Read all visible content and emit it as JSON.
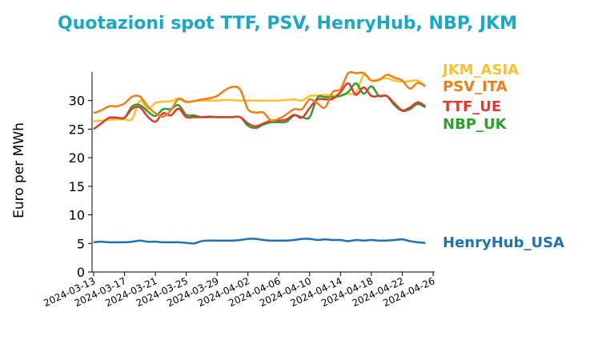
{
  "colors": {
    "title": "#19a9c7",
    "JKM_ASIA": "#fcc12b",
    "PSV_ITA": "#f07e14",
    "TTF_UE": "#dd3a30",
    "NBP_UK": "#2ca02c",
    "HenryHub_USA": "#1f72b2"
  },
  "chart_data": {
    "type": "line",
    "title": "Quotazioni spot TTF, PSV, HenryHub, NBP, JKM",
    "xlabel": "",
    "ylabel": "Euro per MWh",
    "ylim": [
      0,
      35
    ],
    "xlim": [
      "2024-03-13",
      "2024-04-26"
    ],
    "grid": false,
    "legend": "series labels at line ends (right)",
    "yticks": [
      "0",
      "5",
      "10",
      "15",
      "20",
      "25",
      "30"
    ],
    "xticks": [
      "2024-03-13",
      "2024-03-17",
      "2024-03-21",
      "2024-03-25",
      "2024-03-29",
      "2024-04-02",
      "2024-04-06",
      "2024-04-10",
      "2024-04-14",
      "2024-04-18",
      "2024-04-22",
      "2024-04-26"
    ],
    "x": [
      "2024-03-13",
      "2024-03-14",
      "2024-03-15",
      "2024-03-16",
      "2024-03-17",
      "2024-03-18",
      "2024-03-19",
      "2024-03-20",
      "2024-03-21",
      "2024-03-22",
      "2024-03-23",
      "2024-03-24",
      "2024-03-25",
      "2024-03-26",
      "2024-03-27",
      "2024-03-28",
      "2024-03-29",
      "2024-03-30",
      "2024-03-31",
      "2024-04-01",
      "2024-04-02",
      "2024-04-03",
      "2024-04-04",
      "2024-04-05",
      "2024-04-06",
      "2024-04-07",
      "2024-04-08",
      "2024-04-09",
      "2024-04-10",
      "2024-04-11",
      "2024-04-12",
      "2024-04-13",
      "2024-04-14",
      "2024-04-15",
      "2024-04-16",
      "2024-04-17",
      "2024-04-18",
      "2024-04-19",
      "2024-04-20",
      "2024-04-21",
      "2024-04-22",
      "2024-04-23",
      "2024-04-24",
      "2024-04-25"
    ],
    "series": [
      {
        "name": "JKM_ASIA",
        "values": [
          26.4,
          26.5,
          26.6,
          26.7,
          26.7,
          26.8,
          30.0,
          28.5,
          29.6,
          29.8,
          29.9,
          30.3,
          29.7,
          29.9,
          30.0,
          30.0,
          30.0,
          30.1,
          30.1,
          30.0,
          30.0,
          30.0,
          30.0,
          30.0,
          30.0,
          30.1,
          30.2,
          30.0,
          30.8,
          30.9,
          31.0,
          30.9,
          31.0,
          31.2,
          31.3,
          34.5,
          33.5,
          33.8,
          33.9,
          33.5,
          33.3,
          33.4,
          33.5,
          32.5
        ]
      },
      {
        "name": "PSV_ITA",
        "values": [
          27.8,
          28.3,
          29.0,
          29.0,
          29.5,
          30.7,
          30.7,
          29.0,
          27.8,
          27.2,
          28.3,
          30.3,
          29.8,
          29.9,
          30.2,
          30.4,
          30.8,
          31.8,
          32.4,
          31.9,
          28.5,
          27.9,
          27.9,
          26.5,
          26.8,
          27.6,
          28.5,
          28.5,
          30.2,
          29.5,
          28.8,
          31.5,
          32.0,
          34.8,
          34.8,
          34.8,
          33.5,
          33.6,
          34.5,
          34.0,
          33.5,
          32.1,
          33.1,
          32.5
        ]
      },
      {
        "name": "TTF_UE",
        "values": [
          25.0,
          26.0,
          27.0,
          27.0,
          27.0,
          28.6,
          28.8,
          27.2,
          26.3,
          27.8,
          27.4,
          28.6,
          27.1,
          27.1,
          27.1,
          27.2,
          27.1,
          27.1,
          27.1,
          27.1,
          26.0,
          25.5,
          26.0,
          26.5,
          26.5,
          26.7,
          27.5,
          27.0,
          28.7,
          30.2,
          30.2,
          30.3,
          31.5,
          33.0,
          31.0,
          32.3,
          30.8,
          30.8,
          30.8,
          29.5,
          28.3,
          28.8,
          29.7,
          29.0
        ]
      },
      {
        "name": "NBP_UK",
        "values": [
          null,
          null,
          27.0,
          27.0,
          27.0,
          29.0,
          29.2,
          28.1,
          27.3,
          28.5,
          28.5,
          29.2,
          27.5,
          27.4,
          27.1,
          27.1,
          27.1,
          27.1,
          27.1,
          27.1,
          25.6,
          25.2,
          25.8,
          26.2,
          26.2,
          26.3,
          27.4,
          27.1,
          27.1,
          30.5,
          30.6,
          30.6,
          30.8,
          31.5,
          33.0,
          31.2,
          32.5,
          30.8,
          30.8,
          29.2,
          28.2,
          28.5,
          29.4,
          28.8
        ]
      },
      {
        "name": "HenryHub_USA",
        "values": [
          5.2,
          5.3,
          5.2,
          5.2,
          5.2,
          5.3,
          5.5,
          5.3,
          5.3,
          5.2,
          5.2,
          5.2,
          5.1,
          5.0,
          5.4,
          5.5,
          5.5,
          5.5,
          5.5,
          5.6,
          5.8,
          5.8,
          5.6,
          5.5,
          5.5,
          5.5,
          5.6,
          5.8,
          5.8,
          5.6,
          5.7,
          5.6,
          5.6,
          5.4,
          5.6,
          5.5,
          5.6,
          5.5,
          5.5,
          5.6,
          5.7,
          5.4,
          5.2,
          5.1
        ]
      }
    ]
  }
}
